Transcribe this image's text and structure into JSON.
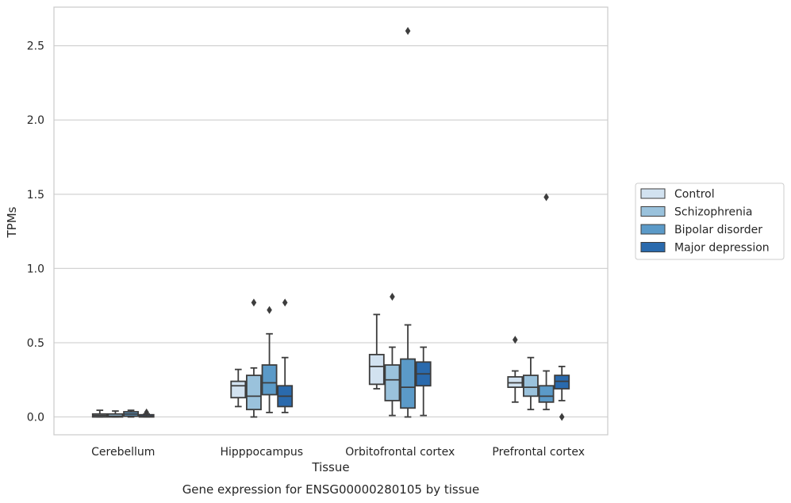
{
  "chart_data": {
    "type": "box",
    "caption": "Gene expression for ENSG00000280105 by tissue",
    "xlabel": "Tissue",
    "ylabel": "TPMs",
    "ylim": [
      -0.12,
      2.76
    ],
    "yticks": [
      0.0,
      0.5,
      1.0,
      1.5,
      2.0,
      2.5
    ],
    "ytick_labels": [
      "0.0",
      "0.5",
      "1.0",
      "1.5",
      "2.0",
      "2.5"
    ],
    "grid": "horizontal",
    "legend_position": "right",
    "categories": [
      "Cerebellum",
      "Hipppocampus",
      "Orbitofrontal cortex",
      "Prefrontal cortex"
    ],
    "series": [
      {
        "name": "Control",
        "color": "#d2e2f0",
        "boxes": [
          {
            "whislo": 0.0,
            "q1": 0.0,
            "med": 0.01,
            "q3": 0.02,
            "whishi": 0.045,
            "fliers": []
          },
          {
            "whislo": 0.07,
            "q1": 0.13,
            "med": 0.21,
            "q3": 0.24,
            "whishi": 0.32,
            "fliers": []
          },
          {
            "whislo": 0.19,
            "q1": 0.22,
            "med": 0.34,
            "q3": 0.42,
            "whishi": 0.69,
            "fliers": []
          },
          {
            "whislo": 0.1,
            "q1": 0.2,
            "med": 0.23,
            "q3": 0.27,
            "whishi": 0.31,
            "fliers": [
              0.52
            ]
          }
        ]
      },
      {
        "name": "Schizophrenia",
        "color": "#9ac2dc",
        "boxes": [
          {
            "whislo": 0.0,
            "q1": 0.0,
            "med": 0.005,
            "q3": 0.02,
            "whishi": 0.04,
            "fliers": []
          },
          {
            "whislo": 0.0,
            "q1": 0.05,
            "med": 0.14,
            "q3": 0.28,
            "whishi": 0.33,
            "fliers": [
              0.77
            ]
          },
          {
            "whislo": 0.01,
            "q1": 0.11,
            "med": 0.25,
            "q3": 0.35,
            "whishi": 0.47,
            "fliers": [
              0.81
            ]
          },
          {
            "whislo": 0.05,
            "q1": 0.14,
            "med": 0.2,
            "q3": 0.28,
            "whishi": 0.4,
            "fliers": []
          }
        ]
      },
      {
        "name": "Bipolar disorder",
        "color": "#5b9ac8",
        "boxes": [
          {
            "whislo": 0.0,
            "q1": 0.005,
            "med": 0.02,
            "q3": 0.035,
            "whishi": 0.045,
            "fliers": []
          },
          {
            "whislo": 0.03,
            "q1": 0.15,
            "med": 0.23,
            "q3": 0.35,
            "whishi": 0.56,
            "fliers": [
              0.72
            ]
          },
          {
            "whislo": 0.0,
            "q1": 0.06,
            "med": 0.2,
            "q3": 0.39,
            "whishi": 0.62,
            "fliers": [
              2.6
            ]
          },
          {
            "whislo": 0.05,
            "q1": 0.1,
            "med": 0.14,
            "q3": 0.21,
            "whishi": 0.31,
            "fliers": [
              1.48
            ]
          }
        ]
      },
      {
        "name": "Major depression",
        "color": "#2a6aad",
        "boxes": [
          {
            "whislo": 0.0,
            "q1": 0.0,
            "med": 0.005,
            "q3": 0.015,
            "whishi": 0.02,
            "fliers": [
              0.03
            ]
          },
          {
            "whislo": 0.03,
            "q1": 0.07,
            "med": 0.14,
            "q3": 0.21,
            "whishi": 0.4,
            "fliers": [
              0.77
            ]
          },
          {
            "whislo": 0.01,
            "q1": 0.21,
            "med": 0.29,
            "q3": 0.37,
            "whishi": 0.47,
            "fliers": []
          },
          {
            "whislo": 0.11,
            "q1": 0.19,
            "med": 0.24,
            "q3": 0.28,
            "whishi": 0.34,
            "fliers": [
              0.0
            ]
          }
        ]
      }
    ]
  }
}
